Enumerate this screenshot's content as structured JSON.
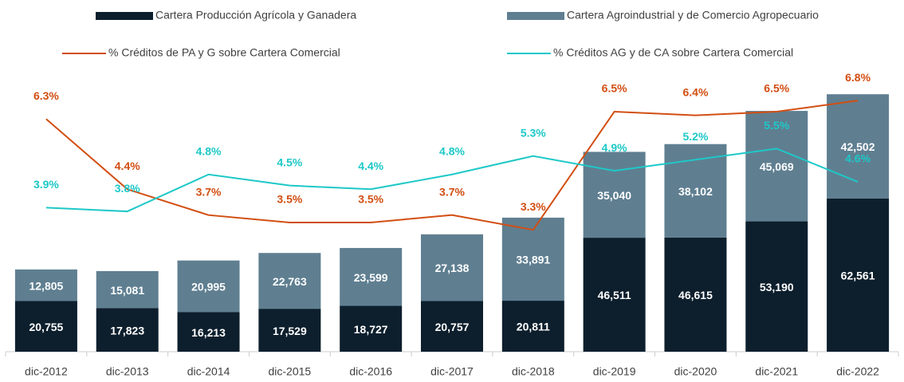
{
  "chart_data": {
    "type": "bar",
    "categories": [
      "dic-2012",
      "dic-2013",
      "dic-2014",
      "dic-2015",
      "dic-2016",
      "dic-2017",
      "dic-2018",
      "dic-2019",
      "dic-2020",
      "dic-2021",
      "dic-2022"
    ],
    "ylim": [
      0,
      110000
    ],
    "y2lim": [
      0,
      7.3
    ],
    "series": [
      {
        "name": "Cartera Producción Agrícola y Ganadera",
        "type": "bar",
        "color": "#0d1f2d",
        "values": [
          20755,
          17823,
          16213,
          17529,
          18727,
          20757,
          20811,
          46511,
          46615,
          53190,
          62561
        ],
        "value_labels": [
          "20,755",
          "17,823",
          "16,213",
          "17,529",
          "18,727",
          "20,757",
          "20,811",
          "46,511",
          "46,615",
          "53,190",
          "62,561"
        ]
      },
      {
        "name": "Cartera Agroindustrial y de Comercio Agropecuario",
        "type": "bar",
        "color": "#5f7f91",
        "values": [
          12805,
          15081,
          20995,
          22763,
          23599,
          27138,
          33891,
          35040,
          38102,
          45069,
          42502
        ],
        "value_labels": [
          "12,805",
          "15,081",
          "20,995",
          "22,763",
          "23,599",
          "27,138",
          "33,891",
          "35,040",
          "38,102",
          "45,069",
          "42,502"
        ]
      },
      {
        "name": "% Créditos de PA y G sobre Cartera Comercial",
        "type": "line",
        "axis": "y2",
        "color": "#d24e12",
        "values": [
          6.3,
          4.4,
          3.7,
          3.5,
          3.5,
          3.7,
          3.3,
          6.5,
          6.4,
          6.5,
          6.8
        ],
        "value_labels": [
          "6.3%",
          "4.4%",
          "3.7%",
          "3.5%",
          "3.5%",
          "3.7%",
          "3.3%",
          "6.5%",
          "6.4%",
          "6.5%",
          "6.8%"
        ]
      },
      {
        "name": "% Créditos AG y de CA sobre Cartera Comercial",
        "type": "line",
        "axis": "y2",
        "color": "#1ec8c8",
        "values": [
          3.9,
          3.8,
          4.8,
          4.5,
          4.4,
          4.8,
          5.3,
          4.9,
          5.2,
          5.5,
          4.6
        ],
        "value_labels": [
          "3.9%",
          "3.8%",
          "4.8%",
          "4.5%",
          "4.4%",
          "4.8%",
          "5.3%",
          "4.9%",
          "5.2%",
          "5.5%",
          "4.6%"
        ]
      }
    ]
  }
}
